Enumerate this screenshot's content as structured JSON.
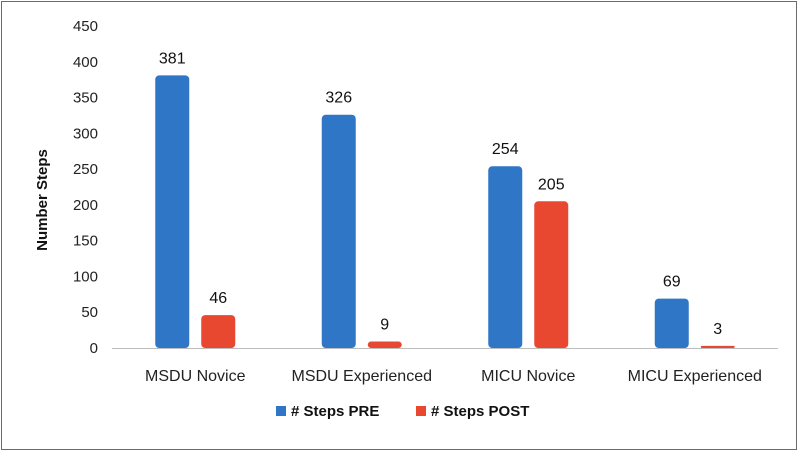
{
  "chart_data": {
    "type": "bar",
    "categories": [
      "MSDU Novice",
      "MSDU Experienced",
      "MICU Novice",
      "MICU Experienced"
    ],
    "series": [
      {
        "name": "# Steps PRE",
        "values": [
          381,
          326,
          254,
          69
        ],
        "color": "#2f77c6"
      },
      {
        "name": "# Steps POST",
        "values": [
          46,
          9,
          205,
          3
        ],
        "color": "#e8482f"
      }
    ],
    "ylabel": "Number Steps",
    "ylim": [
      0,
      450
    ],
    "yticks": [
      0,
      50,
      100,
      150,
      200,
      250,
      300,
      350,
      400,
      450
    ],
    "grid": false,
    "legend": "bottom"
  }
}
